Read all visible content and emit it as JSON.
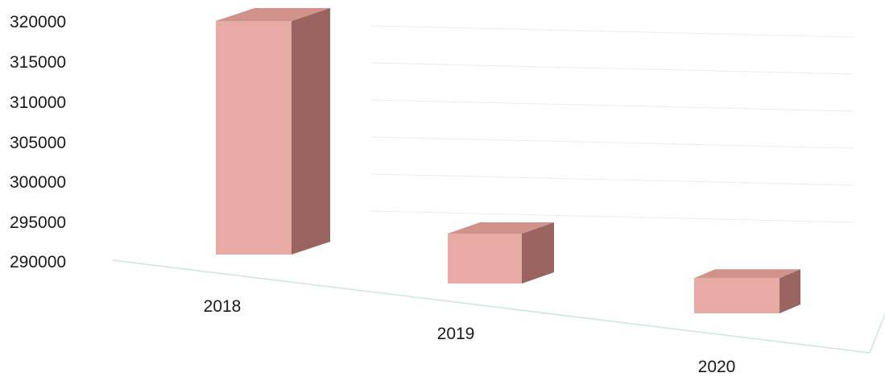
{
  "chart_data": {
    "type": "bar",
    "style": "3d-column",
    "title": "",
    "xlabel": "",
    "ylabel": "",
    "categories": [
      "2018",
      "2019",
      "2020"
    ],
    "values": [
      319000,
      300000,
      297000
    ],
    "ylim": [
      290000,
      320000
    ],
    "yticks": [
      320000,
      315000,
      310000,
      305000,
      300000,
      295000,
      290000
    ],
    "ytick_labels": [
      "320000",
      "315000",
      "310000",
      "305000",
      "300000",
      "295000",
      "290000"
    ],
    "grid": true,
    "legend": "none",
    "colors": {
      "bar_front": "#e8aaa4",
      "bar_top": "#d2928c",
      "bar_side": "#9a6460",
      "floor_line": "#cfe3e6",
      "grid_line": "#e6eeee"
    }
  }
}
